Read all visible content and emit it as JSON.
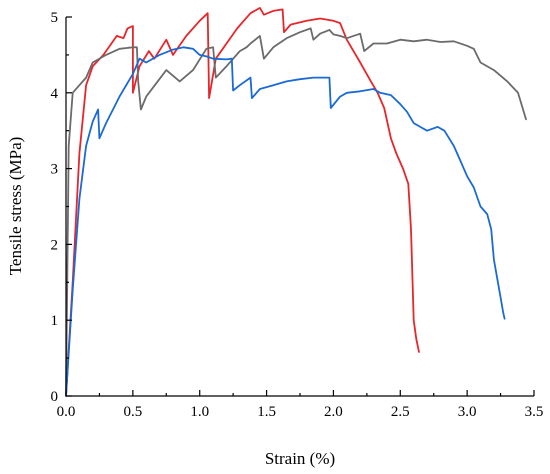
{
  "chart_data": {
    "type": "line",
    "title": "",
    "xlabel": "Strain (%)",
    "ylabel": "Tensile stress (MPa)",
    "xlim": [
      0,
      3.5
    ],
    "ylim": [
      0,
      5
    ],
    "xticks": [
      "0.0",
      "0.5",
      "1.0",
      "1.5",
      "2.0",
      "2.5",
      "3.0",
      "3.5"
    ],
    "yticks": [
      "0",
      "1",
      "2",
      "3",
      "4",
      "5"
    ],
    "grid": false,
    "legend": "none",
    "series": [
      {
        "color": "#e8252a",
        "points": [
          [
            0.0,
            0.0
          ],
          [
            0.05,
            1.5
          ],
          [
            0.1,
            3.2
          ],
          [
            0.15,
            4.1
          ],
          [
            0.2,
            4.35
          ],
          [
            0.28,
            4.5
          ],
          [
            0.38,
            4.75
          ],
          [
            0.43,
            4.72
          ],
          [
            0.46,
            4.85
          ],
          [
            0.5,
            4.88
          ],
          [
            0.5,
            4.0
          ],
          [
            0.55,
            4.35
          ],
          [
            0.62,
            4.55
          ],
          [
            0.66,
            4.45
          ],
          [
            0.75,
            4.7
          ],
          [
            0.8,
            4.5
          ],
          [
            0.9,
            4.75
          ],
          [
            1.0,
            4.95
          ],
          [
            1.06,
            5.05
          ],
          [
            1.07,
            3.93
          ],
          [
            1.12,
            4.45
          ],
          [
            1.2,
            4.65
          ],
          [
            1.28,
            4.85
          ],
          [
            1.38,
            5.05
          ],
          [
            1.45,
            5.12
          ],
          [
            1.48,
            5.03
          ],
          [
            1.55,
            5.08
          ],
          [
            1.62,
            5.1
          ],
          [
            1.63,
            4.8
          ],
          [
            1.68,
            4.9
          ],
          [
            1.8,
            4.95
          ],
          [
            1.9,
            4.98
          ],
          [
            2.0,
            4.95
          ],
          [
            2.05,
            4.92
          ],
          [
            2.1,
            4.7
          ],
          [
            2.2,
            4.4
          ],
          [
            2.28,
            4.15
          ],
          [
            2.33,
            4.0
          ],
          [
            2.38,
            3.8
          ],
          [
            2.43,
            3.4
          ],
          [
            2.47,
            3.2
          ],
          [
            2.52,
            3.0
          ],
          [
            2.56,
            2.8
          ],
          [
            2.58,
            2.2
          ],
          [
            2.6,
            1.0
          ],
          [
            2.62,
            0.75
          ],
          [
            2.64,
            0.58
          ]
        ]
      },
      {
        "color": "#6b6b6b",
        "points": [
          [
            0.0,
            0.0
          ],
          [
            0.02,
            3.3
          ],
          [
            0.05,
            4.0
          ],
          [
            0.1,
            4.1
          ],
          [
            0.15,
            4.2
          ],
          [
            0.2,
            4.4
          ],
          [
            0.3,
            4.5
          ],
          [
            0.4,
            4.58
          ],
          [
            0.5,
            4.6
          ],
          [
            0.53,
            4.6
          ],
          [
            0.54,
            4.15
          ],
          [
            0.56,
            3.78
          ],
          [
            0.6,
            3.95
          ],
          [
            0.75,
            4.3
          ],
          [
            0.85,
            4.15
          ],
          [
            0.95,
            4.3
          ],
          [
            1.05,
            4.58
          ],
          [
            1.1,
            4.6
          ],
          [
            1.12,
            4.2
          ],
          [
            1.2,
            4.35
          ],
          [
            1.3,
            4.55
          ],
          [
            1.35,
            4.6
          ],
          [
            1.38,
            4.65
          ],
          [
            1.45,
            4.75
          ],
          [
            1.48,
            4.45
          ],
          [
            1.55,
            4.6
          ],
          [
            1.65,
            4.72
          ],
          [
            1.75,
            4.8
          ],
          [
            1.83,
            4.85
          ],
          [
            1.85,
            4.7
          ],
          [
            1.9,
            4.78
          ],
          [
            1.97,
            4.83
          ],
          [
            2.0,
            4.77
          ],
          [
            2.05,
            4.75
          ],
          [
            2.1,
            4.72
          ],
          [
            2.2,
            4.78
          ],
          [
            2.23,
            4.55
          ],
          [
            2.3,
            4.65
          ],
          [
            2.4,
            4.65
          ],
          [
            2.5,
            4.7
          ],
          [
            2.6,
            4.68
          ],
          [
            2.7,
            4.7
          ],
          [
            2.8,
            4.67
          ],
          [
            2.9,
            4.68
          ],
          [
            3.0,
            4.62
          ],
          [
            3.05,
            4.58
          ],
          [
            3.1,
            4.4
          ],
          [
            3.2,
            4.3
          ],
          [
            3.3,
            4.15
          ],
          [
            3.38,
            4.0
          ],
          [
            3.44,
            3.65
          ]
        ]
      },
      {
        "color": "#1a6ad6",
        "points": [
          [
            0.0,
            0.0
          ],
          [
            0.05,
            1.4
          ],
          [
            0.1,
            2.6
          ],
          [
            0.15,
            3.3
          ],
          [
            0.2,
            3.62
          ],
          [
            0.24,
            3.78
          ],
          [
            0.25,
            3.4
          ],
          [
            0.3,
            3.6
          ],
          [
            0.4,
            3.95
          ],
          [
            0.5,
            4.25
          ],
          [
            0.55,
            4.45
          ],
          [
            0.6,
            4.4
          ],
          [
            0.7,
            4.5
          ],
          [
            0.8,
            4.57
          ],
          [
            0.88,
            4.6
          ],
          [
            0.95,
            4.58
          ],
          [
            1.0,
            4.5
          ],
          [
            1.05,
            4.48
          ],
          [
            1.1,
            4.45
          ],
          [
            1.2,
            4.44
          ],
          [
            1.24,
            4.45
          ],
          [
            1.25,
            4.03
          ],
          [
            1.3,
            4.1
          ],
          [
            1.38,
            4.2
          ],
          [
            1.39,
            3.93
          ],
          [
            1.45,
            4.05
          ],
          [
            1.55,
            4.1
          ],
          [
            1.65,
            4.15
          ],
          [
            1.75,
            4.18
          ],
          [
            1.85,
            4.2
          ],
          [
            1.92,
            4.2
          ],
          [
            1.97,
            4.2
          ],
          [
            1.98,
            3.8
          ],
          [
            2.05,
            3.95
          ],
          [
            2.1,
            4.0
          ],
          [
            2.2,
            4.02
          ],
          [
            2.3,
            4.05
          ],
          [
            2.35,
            4.0
          ],
          [
            2.43,
            3.97
          ],
          [
            2.5,
            3.85
          ],
          [
            2.55,
            3.75
          ],
          [
            2.6,
            3.6
          ],
          [
            2.65,
            3.55
          ],
          [
            2.7,
            3.5
          ],
          [
            2.78,
            3.55
          ],
          [
            2.83,
            3.5
          ],
          [
            2.9,
            3.3
          ],
          [
            2.95,
            3.1
          ],
          [
            3.0,
            2.9
          ],
          [
            3.05,
            2.75
          ],
          [
            3.1,
            2.5
          ],
          [
            3.15,
            2.4
          ],
          [
            3.18,
            2.2
          ],
          [
            3.2,
            1.8
          ],
          [
            3.23,
            1.5
          ],
          [
            3.25,
            1.3
          ],
          [
            3.27,
            1.1
          ],
          [
            3.28,
            1.02
          ]
        ]
      }
    ]
  }
}
